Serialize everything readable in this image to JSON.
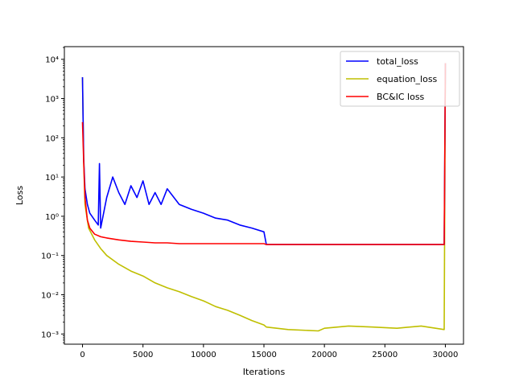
{
  "chart_data": {
    "type": "line",
    "xlabel": "Iterations",
    "ylabel": "Loss",
    "xlim": [
      -1500,
      31500
    ],
    "ylim": [
      0.00055,
      21000
    ],
    "yscale": "log",
    "x_ticks": [
      0,
      5000,
      10000,
      15000,
      20000,
      25000,
      30000
    ],
    "x_tick_labels": [
      "0",
      "5000",
      "10000",
      "15000",
      "20000",
      "25000",
      "30000"
    ],
    "y_ticks": [
      0.001,
      0.01,
      0.1,
      1,
      10,
      100,
      1000,
      10000
    ],
    "y_tick_labels": [
      "10⁻³",
      "10⁻²",
      "10⁻¹",
      "10⁰",
      "10¹",
      "10²",
      "10³",
      "10⁴"
    ],
    "grid": false,
    "legend_position": "top-right",
    "series": [
      {
        "name": "total_loss",
        "color": "#0000ff",
        "x": [
          0,
          100,
          200,
          400,
          600,
          1000,
          1300,
          1400,
          1500,
          2000,
          2500,
          3000,
          3500,
          4000,
          4500,
          5000,
          5500,
          6000,
          6500,
          7000,
          8000,
          9000,
          10000,
          11000,
          12000,
          13000,
          14000,
          15000,
          15200,
          20000,
          25000,
          29900,
          30000
        ],
        "values": [
          3500,
          30,
          5,
          2,
          1.2,
          0.8,
          0.6,
          22,
          0.5,
          3,
          10,
          4,
          2,
          6,
          3,
          8,
          2,
          4,
          2,
          5,
          2,
          1.5,
          1.2,
          0.9,
          0.8,
          0.6,
          0.5,
          0.4,
          0.19,
          0.19,
          0.19,
          0.19,
          8000
        ]
      },
      {
        "name": "equation_loss",
        "color": "#bfbf00",
        "x": [
          0,
          100,
          200,
          500,
          1000,
          1500,
          2000,
          3000,
          4000,
          5000,
          6000,
          7000,
          8000,
          9000,
          10000,
          11000,
          12000,
          13000,
          14000,
          15000,
          15200,
          17000,
          19500,
          20000,
          22000,
          24000,
          26000,
          28000,
          29900,
          30000
        ],
        "values": [
          3500,
          25,
          2,
          0.5,
          0.25,
          0.15,
          0.1,
          0.06,
          0.04,
          0.03,
          0.02,
          0.015,
          0.012,
          0.009,
          0.007,
          0.005,
          0.004,
          0.003,
          0.0022,
          0.0017,
          0.0015,
          0.0013,
          0.0012,
          0.0014,
          0.0016,
          0.0015,
          0.0014,
          0.0016,
          0.0013,
          8000
        ]
      },
      {
        "name": "BC&IC loss",
        "color": "#ff0000",
        "x": [
          0,
          100,
          200,
          400,
          600,
          1000,
          1500,
          2000,
          3000,
          4000,
          5000,
          6000,
          7000,
          8000,
          9000,
          10000,
          11000,
          12000,
          13000,
          14000,
          15000,
          15200,
          20000,
          25000,
          29900,
          30000
        ],
        "values": [
          250,
          25,
          3,
          0.8,
          0.5,
          0.35,
          0.3,
          0.28,
          0.25,
          0.23,
          0.22,
          0.21,
          0.21,
          0.2,
          0.2,
          0.2,
          0.2,
          0.2,
          0.2,
          0.2,
          0.2,
          0.19,
          0.19,
          0.19,
          0.19,
          8000
        ]
      }
    ]
  }
}
